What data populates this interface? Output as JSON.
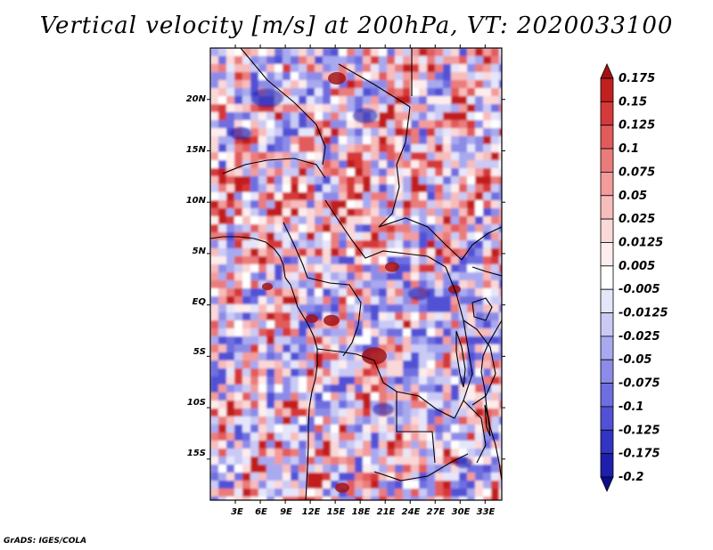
{
  "chart_data": {
    "type": "heatmap",
    "title": "Vertical velocity [m/s] at 200hPa, VT: 2020033100",
    "variable": "Vertical velocity",
    "units": "m/s",
    "level": "200hPa",
    "valid_time": "2020033100",
    "lon_range": [
      0,
      35
    ],
    "lat_range": [
      -19,
      25
    ],
    "x_ticks": [
      "3E",
      "6E",
      "9E",
      "12E",
      "15E",
      "18E",
      "21E",
      "24E",
      "27E",
      "30E",
      "33E"
    ],
    "x_tick_values": [
      3,
      6,
      9,
      12,
      15,
      18,
      21,
      24,
      27,
      30,
      33
    ],
    "y_ticks": [
      "20N",
      "15N",
      "10N",
      "5N",
      "EQ",
      "5S",
      "10S",
      "15S"
    ],
    "y_tick_values": [
      20,
      15,
      10,
      5,
      0,
      -5,
      -10,
      -15
    ],
    "colorbar_levels": [
      "0.175",
      "0.15",
      "0.125",
      "0.1",
      "0.075",
      "0.05",
      "0.025",
      "0.0125",
      "0.005",
      "-0.005",
      "-0.0125",
      "-0.025",
      "-0.05",
      "-0.075",
      "-0.1",
      "-0.125",
      "-0.175",
      "-0.2"
    ],
    "colorbar_colors": [
      "#a51212",
      "#c21f1f",
      "#d63939",
      "#e25b5b",
      "#ea7b7b",
      "#f29c9c",
      "#f7bcbc",
      "#fbd8d8",
      "#fdeded",
      "#ffffff",
      "#e6e6fb",
      "#cacaf5",
      "#a9a9ef",
      "#8c8ce8",
      "#6e6ee0",
      "#5151d6",
      "#3434c4",
      "#1f1fad",
      "#0d0d8c"
    ]
  },
  "footer": {
    "credit": "GrADS: IGES/COLA"
  }
}
